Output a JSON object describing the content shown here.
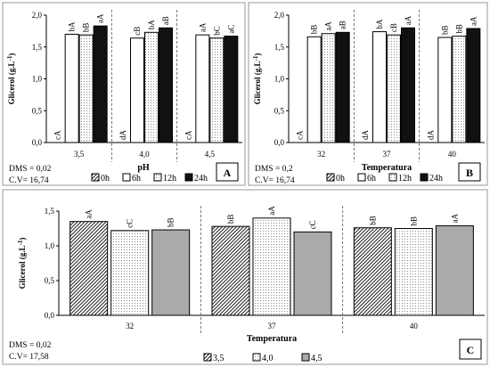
{
  "chart_data": [
    {
      "type": "bar",
      "panel_label": "A",
      "ylabel": "Glicerol (g.L",
      "ylabel_sup": "-1",
      "ylabel_end": ")",
      "xlabel": "pH",
      "ylim": [
        0,
        2.0
      ],
      "yticks": [
        "0,0",
        "0,5",
        "1,0",
        "1,5",
        "2,0"
      ],
      "categories": [
        "3,5",
        "4,0",
        "4,5"
      ],
      "series": [
        {
          "name": "0h",
          "values": [
            0,
            0,
            0
          ],
          "labels": [
            "cA",
            "dA",
            "cA"
          ]
        },
        {
          "name": "6h",
          "values": [
            1.7,
            1.64,
            1.69
          ],
          "labels": [
            "bA",
            "cB",
            "aA"
          ]
        },
        {
          "name": "12h",
          "values": [
            1.69,
            1.73,
            1.64
          ],
          "labels": [
            "bB",
            "bA",
            "bC"
          ]
        },
        {
          "name": "24h",
          "values": [
            1.83,
            1.8,
            1.67
          ],
          "labels": [
            "aA",
            "aB",
            "aC"
          ]
        }
      ],
      "stats": [
        "DMS = 0,02",
        "C.V= 16,74"
      ]
    },
    {
      "type": "bar",
      "panel_label": "B",
      "ylabel": "Glicerol (g.L",
      "ylabel_sup": "-1",
      "ylabel_end": ")",
      "xlabel": "Temperatura",
      "ylim": [
        0,
        2.0
      ],
      "yticks": [
        "0,0",
        "0,5",
        "1,0",
        "1,5",
        "2,0"
      ],
      "categories": [
        "32",
        "37",
        "40"
      ],
      "series": [
        {
          "name": "0h",
          "values": [
            0,
            0,
            0
          ],
          "labels": [
            "cA",
            "dA",
            "dA"
          ]
        },
        {
          "name": "6h",
          "values": [
            1.66,
            1.74,
            1.65
          ],
          "labels": [
            "bB",
            "bA",
            "bB"
          ]
        },
        {
          "name": "12h",
          "values": [
            1.71,
            1.69,
            1.67
          ],
          "labels": [
            "aA",
            "cB",
            "bB"
          ]
        },
        {
          "name": "24h",
          "values": [
            1.73,
            1.8,
            1.79
          ],
          "labels": [
            "aB",
            "aA",
            "aA"
          ]
        }
      ],
      "stats": [
        "DMS = 0,2",
        "C.V= 16,74"
      ]
    },
    {
      "type": "bar",
      "panel_label": "C",
      "ylabel": "Glicerol (g.L",
      "ylabel_sup": "-1",
      "ylabel_end": ")",
      "xlabel": "Temperatura",
      "ylim": [
        0,
        1.5
      ],
      "yticks": [
        "0,0",
        "0,5",
        "1,0",
        "1,5"
      ],
      "categories": [
        "32",
        "37",
        "40"
      ],
      "series": [
        {
          "name": "3,5",
          "values": [
            1.35,
            1.28,
            1.26
          ],
          "labels": [
            "aA",
            "bB",
            "bB"
          ]
        },
        {
          "name": "4,0",
          "values": [
            1.22,
            1.4,
            1.25
          ],
          "labels": [
            "cC",
            "aA",
            "bB"
          ]
        },
        {
          "name": "4,5",
          "values": [
            1.23,
            1.2,
            1.29
          ],
          "labels": [
            "bB",
            "cC",
            "aA"
          ]
        }
      ],
      "stats": [
        "DMS = 0,02",
        "C.V= 17,58"
      ]
    }
  ]
}
